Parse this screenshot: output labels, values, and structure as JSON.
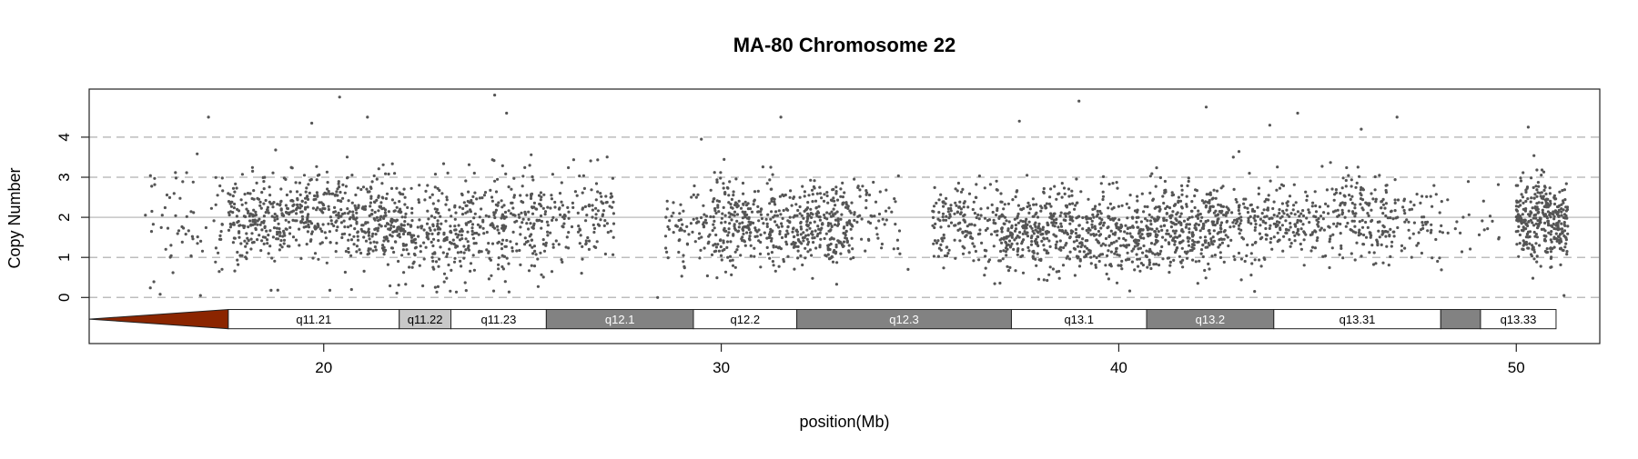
{
  "chart_data": {
    "type": "scatter",
    "title": "MA-80  Chromosome 22",
    "xlabel": "position(Mb)",
    "ylabel": "Copy Number",
    "xlim": [
      14.1,
      52.1
    ],
    "ylim": [
      -1.15,
      5.2
    ],
    "x_ticks": [
      20,
      30,
      40,
      50
    ],
    "y_ticks": [
      0,
      1,
      2,
      3,
      4
    ],
    "dashed_gridlines_y": [
      0,
      1,
      3,
      4
    ],
    "solid_gridline_y": 2,
    "point_color": "#555555",
    "centromere": {
      "start": 14.1,
      "end": 17.6,
      "color": "#8b2500"
    },
    "ideogram_y_range": [
      -0.78,
      -0.3
    ],
    "bands": [
      {
        "name": "q11.21",
        "start": 17.6,
        "end": 21.9,
        "stain": "gneg",
        "color": "#ffffff",
        "text_color": "#000000"
      },
      {
        "name": "q11.22",
        "start": 21.9,
        "end": 23.2,
        "stain": "gpos25",
        "color": "#c8c8c8",
        "text_color": "#000000"
      },
      {
        "name": "q11.23",
        "start": 23.2,
        "end": 25.6,
        "stain": "gneg",
        "color": "#ffffff",
        "text_color": "#000000"
      },
      {
        "name": "q12.1",
        "start": 25.6,
        "end": 29.3,
        "stain": "gpos75",
        "color": "#828282",
        "text_color": "#ffffff"
      },
      {
        "name": "q12.2",
        "start": 29.3,
        "end": 31.9,
        "stain": "gneg",
        "color": "#ffffff",
        "text_color": "#000000"
      },
      {
        "name": "q12.3",
        "start": 31.9,
        "end": 37.3,
        "stain": "gpos75",
        "color": "#828282",
        "text_color": "#ffffff"
      },
      {
        "name": "q13.1",
        "start": 37.3,
        "end": 40.7,
        "stain": "gneg",
        "color": "#ffffff",
        "text_color": "#000000"
      },
      {
        "name": "q13.2",
        "start": 40.7,
        "end": 43.9,
        "stain": "gpos75",
        "color": "#828282",
        "text_color": "#ffffff"
      },
      {
        "name": "q13.31",
        "start": 43.9,
        "end": 48.1,
        "stain": "gneg",
        "color": "#ffffff",
        "text_color": "#000000"
      },
      {
        "name": "",
        "start": 48.1,
        "end": 49.1,
        "stain": "gpos75",
        "color": "#828282",
        "text_color": "#ffffff"
      },
      {
        "name": "q13.33",
        "start": 49.1,
        "end": 51.0,
        "stain": "gneg",
        "color": "#ffffff",
        "text_color": "#000000"
      }
    ],
    "point_clusters": [
      {
        "start": 15.5,
        "end": 17.6,
        "count": 70,
        "mean": 1.8,
        "sd": 0.75
      },
      {
        "start": 17.6,
        "end": 19.0,
        "count": 190,
        "mean": 1.95,
        "sd": 0.55
      },
      {
        "start": 19.0,
        "end": 20.8,
        "count": 230,
        "mean": 2.0,
        "sd": 0.55
      },
      {
        "start": 20.8,
        "end": 22.0,
        "count": 200,
        "mean": 1.85,
        "sd": 0.6
      },
      {
        "start": 22.0,
        "end": 23.6,
        "count": 210,
        "mean": 1.55,
        "sd": 0.6
      },
      {
        "start": 23.6,
        "end": 25.6,
        "count": 240,
        "mean": 1.85,
        "sd": 0.62
      },
      {
        "start": 25.6,
        "end": 27.3,
        "count": 130,
        "mean": 2.0,
        "sd": 0.55
      },
      {
        "start": 28.6,
        "end": 29.8,
        "count": 80,
        "mean": 1.7,
        "sd": 0.55
      },
      {
        "start": 29.8,
        "end": 31.6,
        "count": 260,
        "mean": 1.9,
        "sd": 0.55
      },
      {
        "start": 31.6,
        "end": 33.3,
        "count": 280,
        "mean": 1.8,
        "sd": 0.5
      },
      {
        "start": 33.3,
        "end": 34.5,
        "count": 55,
        "mean": 2.0,
        "sd": 0.5
      },
      {
        "start": 35.3,
        "end": 37.0,
        "count": 170,
        "mean": 1.8,
        "sd": 0.5
      },
      {
        "start": 37.0,
        "end": 38.9,
        "count": 300,
        "mean": 1.65,
        "sd": 0.5
      },
      {
        "start": 38.9,
        "end": 40.9,
        "count": 300,
        "mean": 1.65,
        "sd": 0.55
      },
      {
        "start": 40.9,
        "end": 42.6,
        "count": 310,
        "mean": 1.75,
        "sd": 0.5
      },
      {
        "start": 42.6,
        "end": 44.9,
        "count": 230,
        "mean": 1.85,
        "sd": 0.5
      },
      {
        "start": 44.9,
        "end": 47.0,
        "count": 210,
        "mean": 1.95,
        "sd": 0.55
      },
      {
        "start": 47.0,
        "end": 48.3,
        "count": 60,
        "mean": 1.9,
        "sd": 0.5
      },
      {
        "start": 48.4,
        "end": 49.6,
        "count": 18,
        "mean": 1.9,
        "sd": 0.7
      },
      {
        "start": 50.0,
        "end": 51.3,
        "count": 330,
        "mean": 1.95,
        "sd": 0.5
      }
    ],
    "outliers": [
      [
        17.1,
        4.5
      ],
      [
        20.4,
        5.0
      ],
      [
        21.1,
        4.5
      ],
      [
        24.6,
        4.6
      ],
      [
        24.3,
        5.05
      ],
      [
        19.7,
        4.35
      ],
      [
        29.5,
        3.95
      ],
      [
        31.5,
        4.5
      ],
      [
        37.5,
        4.4
      ],
      [
        39.0,
        4.9
      ],
      [
        42.2,
        4.75
      ],
      [
        43.8,
        4.3
      ],
      [
        44.5,
        4.6
      ],
      [
        46.1,
        4.2
      ],
      [
        47.0,
        4.5
      ],
      [
        50.3,
        4.25
      ],
      [
        16.9,
        0.05
      ],
      [
        20.7,
        0.2
      ],
      [
        34.7,
        0.7
      ],
      [
        28.4,
        0.0
      ],
      [
        38.9,
        0.55
      ],
      [
        51.2,
        0.05
      ]
    ]
  }
}
